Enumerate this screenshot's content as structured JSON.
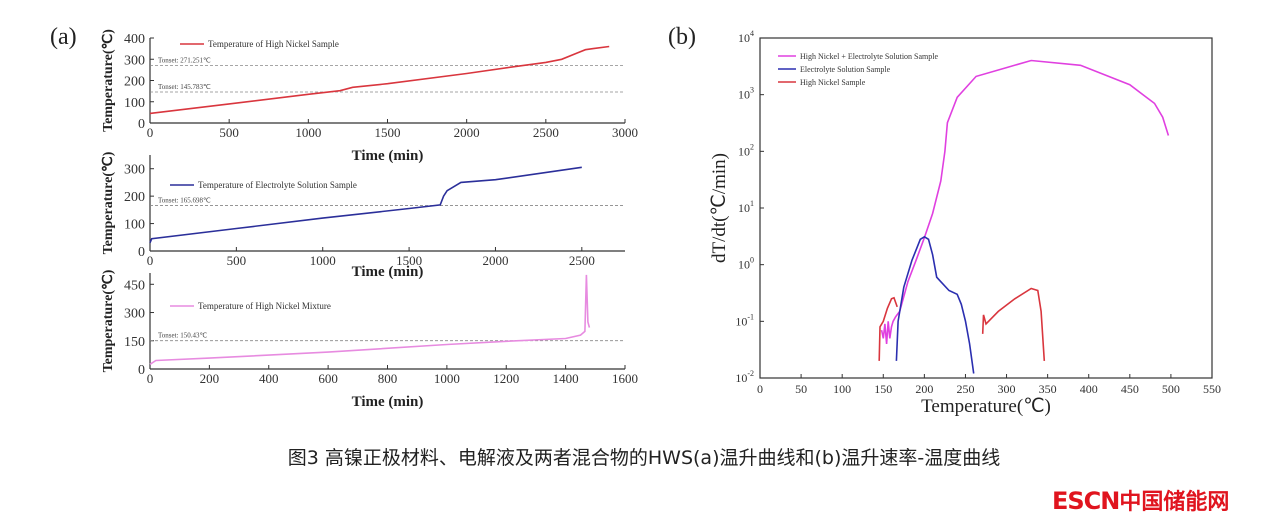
{
  "caption": "图3 高镍正极材料、电解液及两者混合物的HWS(a)温升曲线和(b)温升速率-温度曲线",
  "logo": {
    "latin": "ESCN",
    "chinese": "中国储能网",
    "color": "#e0141e"
  },
  "chart_data": [
    {
      "panel": "(a)",
      "type": "line",
      "xlabel": "Time (min)",
      "ylabel": "Temperature(℃)",
      "xlim": [
        0,
        3000
      ],
      "ylim": [
        0,
        400
      ],
      "xticks": [
        0,
        500,
        1000,
        1500,
        2000,
        2500,
        3000
      ],
      "yticks": [
        0,
        100,
        200,
        300,
        400
      ],
      "series": [
        {
          "name": "Temperature of High Nickel Sample",
          "color": "#d9363e",
          "x": [
            0,
            500,
            1000,
            1200,
            1280,
            1500,
            2000,
            2300,
            2500,
            2600,
            2700,
            2750,
            2800,
            2900
          ],
          "y": [
            45,
            90,
            135,
            152,
            168,
            185,
            233,
            265,
            285,
            300,
            330,
            345,
            350,
            360
          ]
        }
      ],
      "reference_lines": [
        {
          "label": "Tonset: 271.251℃",
          "y": 271.251
        },
        {
          "label": "Tonset: 145.783℃",
          "y": 145.783
        }
      ]
    },
    {
      "type": "line",
      "xlabel": "Time (min)",
      "ylabel": "Temperature(℃)",
      "xlim": [
        0,
        2750
      ],
      "ylim": [
        0,
        350
      ],
      "xticks": [
        0,
        500,
        1000,
        1500,
        2000,
        2500
      ],
      "yticks": [
        0,
        100,
        200,
        300
      ],
      "series": [
        {
          "name": "Temperature of Electrolyte Solution Sample",
          "color": "#2b2f9a",
          "x": [
            0,
            10,
            500,
            1000,
            1500,
            1680,
            1700,
            1720,
            1800,
            2000,
            2500
          ],
          "y": [
            30,
            45,
            82,
            120,
            155,
            168,
            200,
            220,
            250,
            260,
            305
          ]
        }
      ],
      "reference_lines": [
        {
          "label": "Tonset: 165.698℃",
          "y": 165.698
        }
      ]
    },
    {
      "type": "line",
      "xlabel": "Time (min)",
      "ylabel": "Temperature(℃)",
      "xlim": [
        0,
        1600
      ],
      "ylim": [
        0,
        510
      ],
      "xticks": [
        0,
        200,
        400,
        600,
        800,
        1000,
        1200,
        1400,
        1600
      ],
      "yticks": [
        0,
        150,
        300,
        450
      ],
      "series": [
        {
          "name": "Temperature of High Nickel Mixture",
          "color": "#e78be0",
          "x": [
            0,
            20,
            200,
            600,
            1000,
            1200,
            1400,
            1450,
            1465,
            1470,
            1475,
            1480
          ],
          "y": [
            25,
            45,
            58,
            90,
            130,
            147,
            162,
            180,
            200,
            500,
            250,
            220
          ]
        }
      ],
      "reference_lines": [
        {
          "label": "Tonset: 150.43℃",
          "y": 150.43
        }
      ]
    },
    {
      "panel": "(b)",
      "type": "line",
      "xlabel": "Temperature(℃)",
      "ylabel": "dT/dt(℃/min)",
      "xlim": [
        0,
        550
      ],
      "ylim": [
        0.01,
        10000
      ],
      "yscale": "log",
      "xticks": [
        0,
        50,
        100,
        150,
        200,
        250,
        300,
        350,
        400,
        450,
        500,
        550
      ],
      "yticks": [
        0.01,
        0.1,
        1,
        10,
        100,
        1000,
        10000
      ],
      "ytick_exponents": [
        "-2",
        "-1",
        "0",
        "1",
        "2",
        "3",
        "4"
      ],
      "legend": "top-left",
      "series": [
        {
          "name": "High Nickel + Electrolyte Solution Sample",
          "color": "#e040e0",
          "x": [
            148,
            150,
            152,
            154,
            156,
            158,
            160,
            162,
            165,
            170,
            180,
            190,
            200,
            210,
            220,
            225,
            228,
            240,
            263,
            300,
            330,
            390,
            450,
            480,
            490,
            497
          ],
          "y": [
            0.07,
            0.05,
            0.09,
            0.04,
            0.1,
            0.05,
            0.08,
            0.1,
            0.12,
            0.15,
            0.5,
            1.2,
            3,
            8,
            30,
            100,
            320,
            900,
            2100,
            3000,
            4000,
            3300,
            1500,
            700,
            400,
            190
          ]
        },
        {
          "name": "Electrolyte Solution Sample",
          "color": "#2b2fb0",
          "x": [
            166,
            168,
            175,
            185,
            195,
            200,
            205,
            210,
            215,
            220,
            230,
            240,
            245,
            250,
            255,
            260
          ],
          "y": [
            0.02,
            0.1,
            0.4,
            1.2,
            2.8,
            3.1,
            2.8,
            1.5,
            0.6,
            0.5,
            0.35,
            0.3,
            0.2,
            0.1,
            0.04,
            0.012
          ]
        },
        {
          "name": "High Nickel Sample",
          "color": "#d9363e",
          "segments": [
            {
              "x": [
                145,
                146,
                150,
                155,
                160,
                163,
                167
              ],
              "y": [
                0.02,
                0.08,
                0.1,
                0.17,
                0.25,
                0.26,
                0.18
              ]
            },
            {
              "x": [
                271,
                272,
                275,
                290,
                310,
                330,
                338,
                342,
                346
              ],
              "y": [
                0.06,
                0.13,
                0.09,
                0.15,
                0.25,
                0.38,
                0.35,
                0.15,
                0.02
              ]
            }
          ]
        }
      ]
    }
  ]
}
